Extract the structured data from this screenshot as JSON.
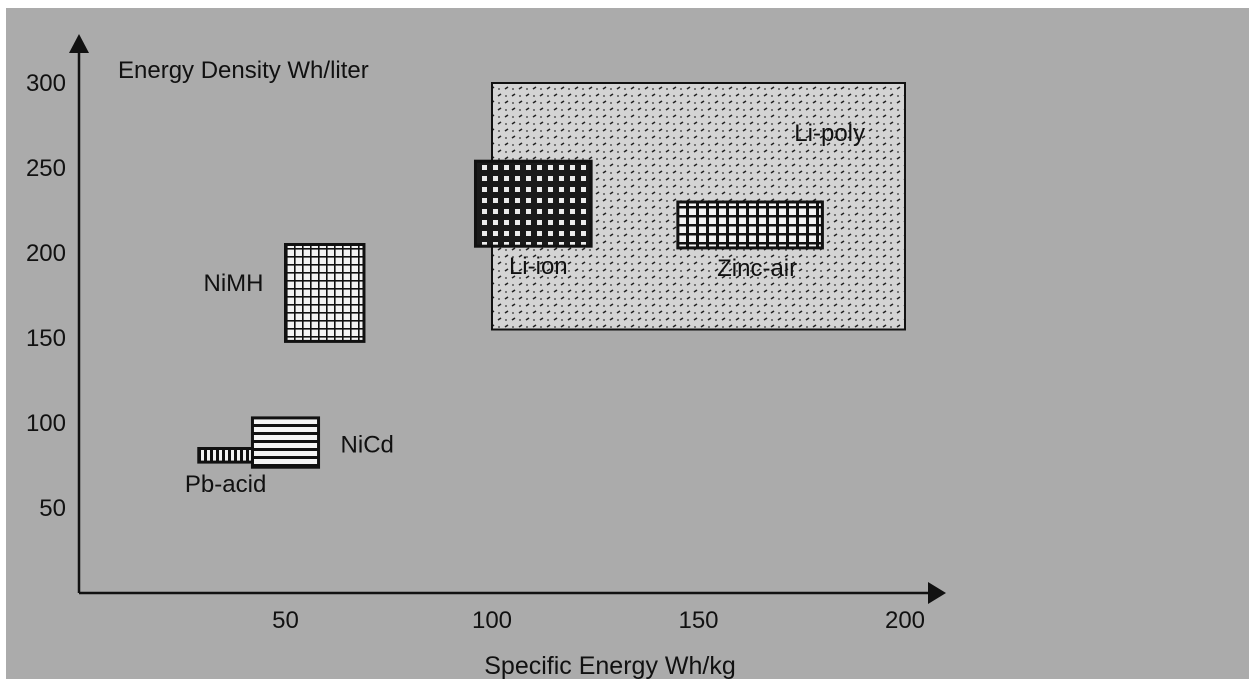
{
  "chart_data": {
    "type": "range-box",
    "ylabel": "Energy Density Wh/liter",
    "xlabel": "Specific Energy Wh/kg",
    "xlim": [
      0,
      200
    ],
    "ylim": [
      0,
      300
    ],
    "x_ticks": [
      50,
      100,
      150,
      200
    ],
    "x_tick_labels": [
      "50",
      "100",
      "150",
      "200"
    ],
    "y_ticks": [
      50,
      100,
      150,
      200,
      250,
      300
    ],
    "y_tick_labels": [
      "50",
      "100",
      "150",
      "200",
      "250",
      "300"
    ],
    "grid": false,
    "background_color": "#ababab",
    "series": [
      {
        "name": "Li-poly",
        "x": [
          100,
          200
        ],
        "y": [
          155,
          300
        ],
        "pattern": "dots"
      },
      {
        "name": "Li-ion",
        "x": [
          96,
          124
        ],
        "y": [
          204,
          254
        ],
        "pattern": "checker"
      },
      {
        "name": "Zinc-air",
        "x": [
          145,
          180
        ],
        "y": [
          203,
          230
        ],
        "pattern": "dense-grid"
      },
      {
        "name": "NiMH",
        "x": [
          50,
          69
        ],
        "y": [
          148,
          205
        ],
        "pattern": "grid"
      },
      {
        "name": "NiCd",
        "x": [
          42,
          58
        ],
        "y": [
          74,
          103
        ],
        "pattern": "horizontal-lines"
      },
      {
        "name": "Pb-acid",
        "x": [
          29,
          42
        ],
        "y": [
          77,
          85
        ],
        "pattern": "vertical-lines"
      }
    ]
  }
}
